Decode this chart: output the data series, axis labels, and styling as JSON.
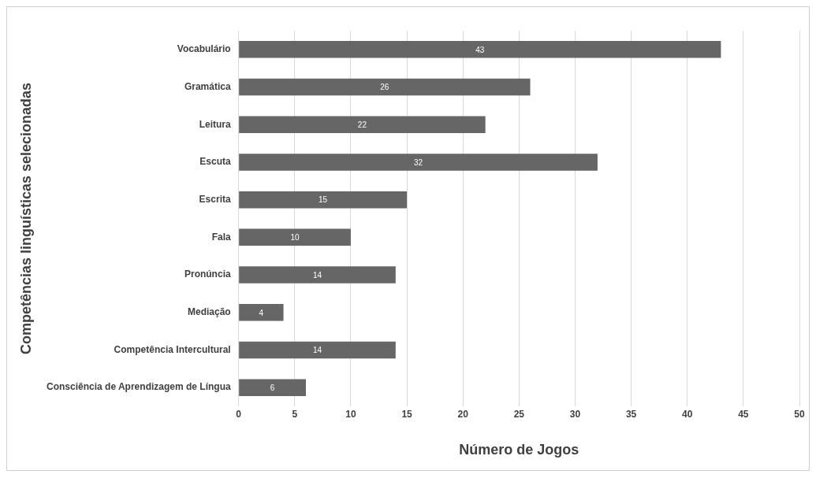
{
  "chart_data": {
    "type": "bar",
    "orientation": "horizontal",
    "xlabel": "Número de Jogos",
    "ylabel": "Competências linguísticas selecionadas",
    "categories": [
      "Vocabulário",
      "Gramática",
      "Leitura",
      "Escuta",
      "Escrita",
      "Fala",
      "Pronúncia",
      "Mediação",
      "Competência Intercultural",
      "Consciência de Aprendizagem de Língua"
    ],
    "values": [
      43,
      26,
      22,
      32,
      15,
      10,
      14,
      4,
      14,
      6
    ],
    "color": "#666666",
    "xlim": [
      0,
      50
    ],
    "xticks": [
      0,
      5,
      10,
      15,
      20,
      25,
      30,
      35,
      40,
      45,
      50
    ],
    "grid": "x",
    "data_labels": true,
    "legend": false
  }
}
